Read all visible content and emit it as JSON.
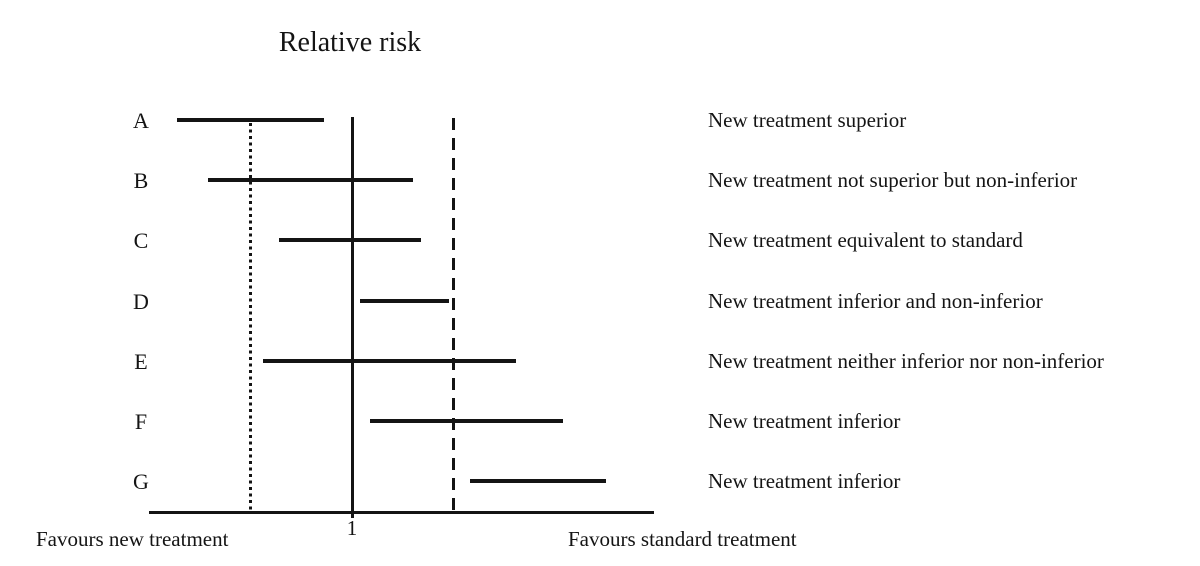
{
  "colors": {
    "ink": "#141414",
    "background": "#ffffff"
  },
  "chart_data": {
    "type": "forest",
    "title": "Relative risk",
    "xlabel": "Relative risk",
    "scale": "linear",
    "x_range": [
      0,
      2.49
    ],
    "ticks": [
      {
        "value": 1,
        "label": "1"
      }
    ],
    "x_captions": {
      "left": "Favours new treatment",
      "right": "Favours standard treatment"
    },
    "reference_lines": [
      {
        "name": "superiority-margin-line",
        "style": "dotted",
        "value": 0.5
      },
      {
        "name": "no-effect-line",
        "style": "solid",
        "value": 1.0
      },
      {
        "name": "non-inferiority-margin-line",
        "style": "dashed",
        "value": 1.5
      }
    ],
    "rows": [
      {
        "id": "A",
        "ci_lower": 0.14,
        "ci_upper": 0.86,
        "description": "New treatment superior"
      },
      {
        "id": "B",
        "ci_lower": 0.29,
        "ci_upper": 1.3,
        "description": "New treatment not superior but non-inferior"
      },
      {
        "id": "C",
        "ci_lower": 0.64,
        "ci_upper": 1.34,
        "description": "New treatment equivalent to standard"
      },
      {
        "id": "D",
        "ci_lower": 1.04,
        "ci_upper": 1.48,
        "description": "New treatment inferior and non-inferior"
      },
      {
        "id": "E",
        "ci_lower": 0.56,
        "ci_upper": 1.81,
        "description": "New treatment neither inferior nor non-inferior"
      },
      {
        "id": "F",
        "ci_lower": 1.09,
        "ci_upper": 2.04,
        "description": "New treatment inferior"
      },
      {
        "id": "G",
        "ci_lower": 1.58,
        "ci_upper": 2.25,
        "description": "New treatment inferior"
      }
    ]
  }
}
